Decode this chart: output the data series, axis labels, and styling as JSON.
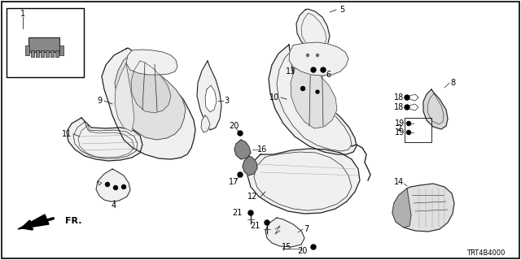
{
  "diagram_code": "TRT4B4000",
  "bg_color": "#ffffff",
  "figsize": [
    6.4,
    3.2
  ],
  "dpi": 100,
  "line_color": "#222222",
  "fill_light": "#f0f0f0",
  "fill_mid": "#e0e0e0",
  "fill_dark": "#b0b0b0"
}
